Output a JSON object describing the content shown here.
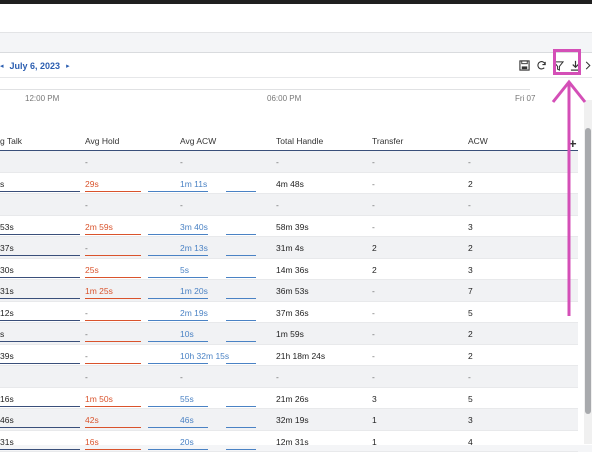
{
  "toolbar": {
    "prev_label": "◂",
    "date": "July 6, 2023",
    "next_label": "▸",
    "icons": [
      "save-icon",
      "refresh-icon",
      "filter-icon",
      "download-icon",
      "chevron-right-icon"
    ]
  },
  "timeline": {
    "ticks": [
      "12:00 PM",
      "06:00 PM",
      "Fri 07"
    ]
  },
  "table": {
    "columns": [
      "g Talk",
      "Avg Hold",
      "Avg ACW",
      "Total Handle",
      "Transfer",
      "ACW"
    ],
    "add_column_label": "+",
    "rows": [
      [
        "",
        "-",
        "-",
        "-",
        "-",
        "-"
      ],
      [
        "s",
        "29s",
        "1m 11s",
        "4m 48s",
        "-",
        "2"
      ],
      [
        "",
        "-",
        "-",
        "-",
        "-",
        "-"
      ],
      [
        "53s",
        "2m 59s",
        "3m 40s",
        "58m 39s",
        "-",
        "3"
      ],
      [
        "37s",
        "-",
        "2m 13s",
        "31m 4s",
        "2",
        "2"
      ],
      [
        "30s",
        "25s",
        "5s",
        "14m 36s",
        "2",
        "3"
      ],
      [
        "31s",
        "1m 25s",
        "1m 20s",
        "36m 53s",
        "-",
        "7"
      ],
      [
        "12s",
        "-",
        "2m 19s",
        "37m 36s",
        "-",
        "5"
      ],
      [
        "s",
        "-",
        "10s",
        "1m 59s",
        "-",
        "2"
      ],
      [
        "39s",
        "-",
        "10h 32m 15s",
        "21h 18m 24s",
        "-",
        "2"
      ],
      [
        "",
        "-",
        "-",
        "-",
        "-",
        "-"
      ],
      [
        "16s",
        "1m 50s",
        "55s",
        "21m 26s",
        "3",
        "5"
      ],
      [
        "46s",
        "42s",
        "46s",
        "32m 19s",
        "1",
        "3"
      ],
      [
        "31s",
        "16s",
        "20s",
        "12m 31s",
        "1",
        "4"
      ]
    ]
  },
  "colors": {
    "accent_blue": "#2a5db0",
    "hold_orange": "#d9532c",
    "acw_blue": "#4a82c4",
    "highlight_pink": "#d44fb7"
  }
}
